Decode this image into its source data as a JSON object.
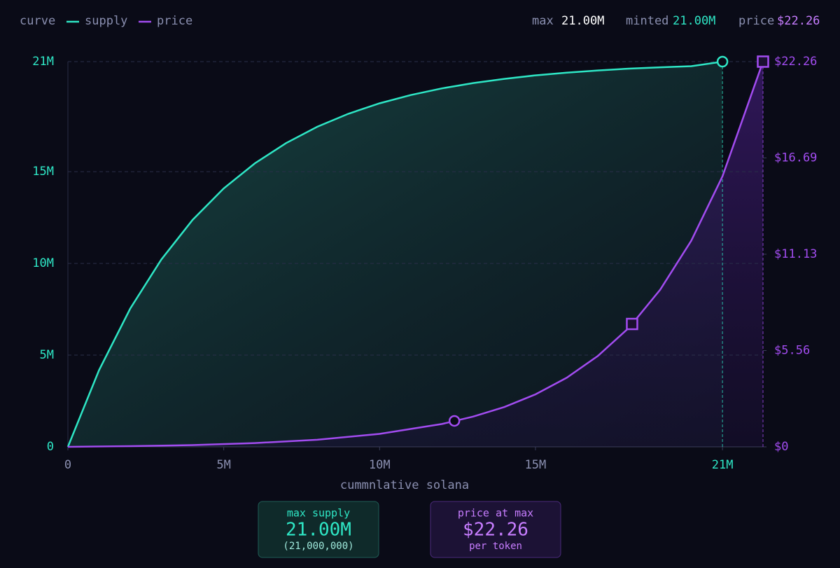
{
  "chart_data": {
    "type": "line",
    "legend_title": "curve",
    "stats": [
      {
        "label": "max",
        "value": "21.00M"
      },
      {
        "label": "minted",
        "value": "21.00M"
      },
      {
        "label": "price",
        "value": "$22.26"
      }
    ],
    "x_label": "cummnlative solana",
    "xlim": [
      0,
      22300000
    ],
    "xticks": [
      0,
      {
        "value": 5000000,
        "label": "5M"
      },
      {
        "value": 10000000,
        "label": "10M"
      },
      {
        "value": 15000000,
        "label": "15M"
      },
      {
        "value": 21000000,
        "label": "21M"
      }
    ],
    "ylim": [
      0,
      21000000
    ],
    "yticks": [
      0,
      {
        "value": 5000000,
        "label": "5M"
      },
      {
        "value": 10000000,
        "label": "10M"
      },
      {
        "value": 15000000,
        "label": "15M"
      },
      {
        "value": 21000000,
        "label": "21M"
      }
    ],
    "y2lim": [
      0,
      22.26
    ],
    "y2ticks": [
      {
        "value": 0,
        "label": "$0"
      },
      {
        "value": 5.565,
        "label": "$5.56"
      },
      {
        "value": 11.13,
        "label": "$11.13"
      },
      {
        "value": 16.695,
        "label": "$16.69"
      },
      {
        "value": 22.26,
        "label": "$22.26"
      }
    ],
    "grid": true,
    "series": [
      {
        "name": "supply",
        "color": "#2ee6c5",
        "x": [
          0,
          1000000,
          2000000,
          3000000,
          4000000,
          5000000,
          6000000,
          7000000,
          8000000,
          9000000,
          10000000,
          11000000,
          12000000,
          13000000,
          14000000,
          15000000,
          16000000,
          17000000,
          18000000,
          19000000,
          20000000,
          21000000
        ],
        "values": [
          0,
          4180000,
          7540000,
          10220000,
          12370000,
          14090000,
          15460000,
          16560000,
          17450000,
          18160000,
          18730000,
          19180000,
          19540000,
          19830000,
          20060000,
          20250000,
          20400000,
          20520000,
          20620000,
          20690000,
          20750000,
          21000000
        ],
        "markers": [
          {
            "x": 21000000,
            "value": 21000000,
            "shape": "circle"
          }
        ]
      },
      {
        "name": "price",
        "color": "#a24cf0",
        "axis": "y2",
        "x": [
          0,
          2000000,
          4000000,
          6000000,
          8000000,
          10000000,
          12000000,
          13000000,
          14000000,
          15000000,
          16000000,
          17000000,
          18000000,
          19000000,
          20000000,
          21000000,
          22300000
        ],
        "values": [
          0,
          0.04,
          0.1,
          0.22,
          0.41,
          0.75,
          1.32,
          1.75,
          2.3,
          3.03,
          3.99,
          5.25,
          6.88,
          9.08,
          11.92,
          15.63,
          22.26
        ],
        "markers": [
          {
            "x": 12400000,
            "value": 1.5,
            "shape": "circle"
          },
          {
            "x": 18100000,
            "value": 7.1,
            "shape": "square"
          },
          {
            "x": 22300000,
            "value": 22.26,
            "shape": "square"
          }
        ]
      }
    ],
    "cards": [
      {
        "title": "max supply",
        "value": "21.00M",
        "note": "(21,000,000)"
      },
      {
        "title": "price at max",
        "value": "$22.26",
        "note": "per token"
      }
    ]
  }
}
